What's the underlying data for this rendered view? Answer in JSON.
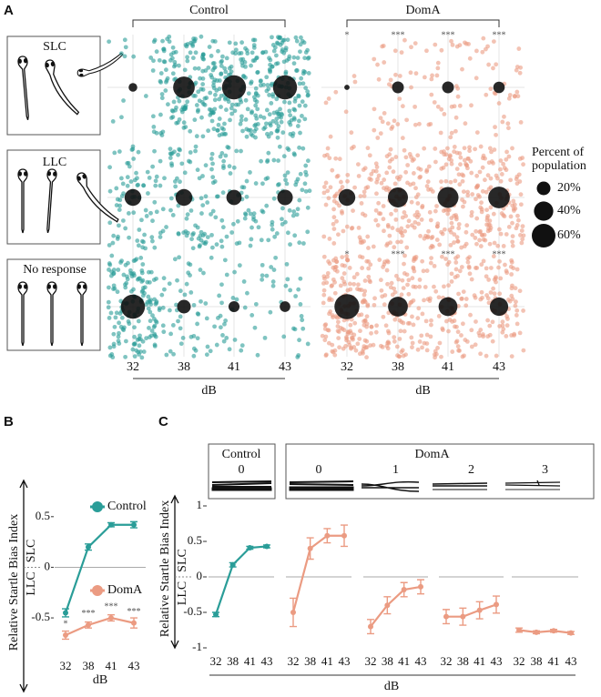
{
  "chart_data": [
    {
      "type": "jitter-bubble",
      "panel_label": "A",
      "row_labels": [
        "SLC",
        "LLC",
        "No response"
      ],
      "categories": [
        "32",
        "38",
        "41",
        "43"
      ],
      "x_label": "dB",
      "groups": [
        {
          "name": "Control",
          "color": "#2a9d98",
          "values": [
            [
              8,
              50,
              62,
              62
            ],
            [
              30,
              30,
              25,
              26
            ],
            [
              62,
              20,
              13,
              12
            ]
          ]
        },
        {
          "name": "DomA",
          "color": "#eb9b82",
          "values": [
            [
              3,
              15,
              15,
              14
            ],
            [
              30,
              43,
              47,
              50
            ],
            [
              67,
              42,
              38,
              36
            ]
          ],
          "significance": [
            [
              "*",
              "***",
              "***",
              "***"
            ],
            null,
            [
              "*",
              "***",
              "***",
              "***"
            ]
          ]
        }
      ],
      "size_legend": {
        "title": "Percent of population",
        "values": [
          {
            "value": 20,
            "label": "20%"
          },
          {
            "value": 40,
            "label": "40%"
          },
          {
            "value": 60,
            "label": "60%"
          }
        ]
      }
    },
    {
      "type": "line",
      "panel_label": "B",
      "y_label": "Relative Startle Bias Index",
      "direction_labels": [
        "LLC",
        "SLC"
      ],
      "x_label": "dB",
      "categories": [
        "32",
        "38",
        "41",
        "43"
      ],
      "ylim": [
        -0.85,
        0.75
      ],
      "yticks": [
        -0.5,
        0,
        0.5
      ],
      "series": [
        {
          "name": "Control",
          "color": "#2a9d98",
          "values": [
            -0.45,
            0.2,
            0.42,
            0.42
          ],
          "errors": [
            0.04,
            0.03,
            0.02,
            0.03
          ]
        },
        {
          "name": "DomA",
          "color": "#eb9b82",
          "values": [
            -0.67,
            -0.57,
            -0.5,
            -0.55
          ],
          "errors": [
            0.04,
            0.03,
            0.03,
            0.05
          ],
          "significance": [
            "*",
            "***",
            "***",
            "***"
          ]
        }
      ]
    },
    {
      "type": "line-panels",
      "panel_label": "C",
      "y_label": "Relative Startle Bias Index",
      "direction_labels": [
        "LLC",
        "SLC"
      ],
      "x_label": "dB",
      "categories": [
        "32",
        "38",
        "41",
        "43"
      ],
      "ylim": [
        -1,
        1
      ],
      "yticks": [
        -1,
        -0.5,
        0,
        0.5,
        1
      ],
      "groups": [
        {
          "name": "Control",
          "color": "#2a9d98",
          "panels": [
            {
              "label": "0",
              "values": [
                -0.53,
                0.17,
                0.41,
                0.43
              ],
              "errors": [
                0.03,
                0.03,
                0.02,
                0.02
              ]
            }
          ]
        },
        {
          "name": "DomA",
          "color": "#eb9b82",
          "panels": [
            {
              "label": "0",
              "values": [
                -0.5,
                0.4,
                0.58,
                0.58
              ],
              "errors": [
                0.2,
                0.15,
                0.1,
                0.15
              ]
            },
            {
              "label": "1",
              "values": [
                -0.7,
                -0.4,
                -0.18,
                -0.14
              ],
              "errors": [
                0.1,
                0.12,
                0.1,
                0.1
              ]
            },
            {
              "label": "2",
              "values": [
                -0.56,
                -0.56,
                -0.47,
                -0.39
              ],
              "errors": [
                0.1,
                0.12,
                0.12,
                0.12
              ]
            },
            {
              "label": "3",
              "values": [
                -0.75,
                -0.78,
                -0.76,
                -0.79
              ],
              "errors": [
                0.03,
                0.02,
                0.02,
                0.02
              ]
            }
          ]
        }
      ]
    }
  ]
}
